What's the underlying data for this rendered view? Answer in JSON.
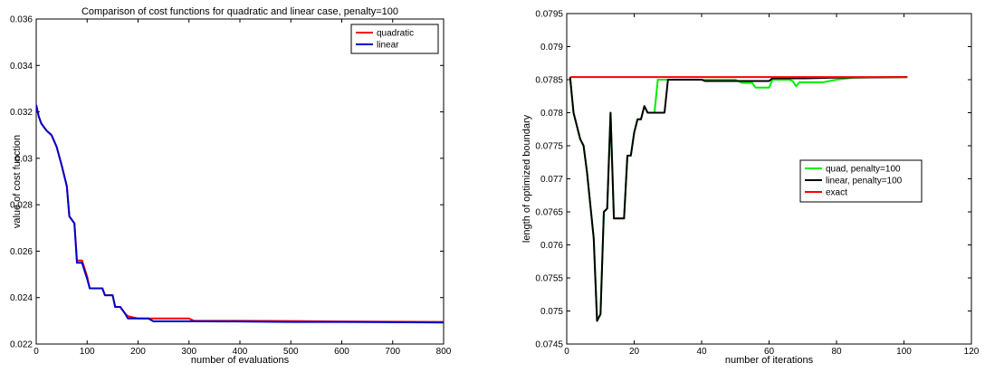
{
  "chart_data": [
    {
      "type": "line",
      "title": "Comparison of cost functions for quadratic and linear case, penalty=100",
      "xlabel": "number of evaluations",
      "ylabel": "value of cost function",
      "xlim": [
        0,
        800
      ],
      "ylim": [
        0.022,
        0.036
      ],
      "xticks": [
        "0",
        "100",
        "200",
        "300",
        "400",
        "500",
        "600",
        "700",
        "800"
      ],
      "yticks": [
        "0.022",
        "0.024",
        "0.026",
        "0.028",
        "0.03",
        "0.032",
        "0.034",
        "0.036"
      ],
      "grid": false,
      "legend": "top-right",
      "series": [
        {
          "name": "quadratic",
          "color": "#ff0000",
          "points": [
            [
              0,
              0.0323
            ],
            [
              5,
              0.0318
            ],
            [
              10,
              0.0315
            ],
            [
              20,
              0.0312
            ],
            [
              30,
              0.031
            ],
            [
              40,
              0.0305
            ],
            [
              50,
              0.0297
            ],
            [
              60,
              0.0288
            ],
            [
              65,
              0.0275
            ],
            [
              75,
              0.0272
            ],
            [
              80,
              0.0256
            ],
            [
              90,
              0.0256
            ],
            [
              100,
              0.0249
            ],
            [
              105,
              0.0244
            ],
            [
              130,
              0.0244
            ],
            [
              135,
              0.0241
            ],
            [
              150,
              0.0241
            ],
            [
              155,
              0.0236
            ],
            [
              165,
              0.0236
            ],
            [
              175,
              0.0233
            ],
            [
              180,
              0.0232
            ],
            [
              200,
              0.0231
            ],
            [
              210,
              0.0231
            ],
            [
              220,
              0.0231
            ],
            [
              300,
              0.0231
            ],
            [
              310,
              0.023
            ],
            [
              400,
              0.023
            ],
            [
              500,
              0.02299
            ],
            [
              600,
              0.02297
            ],
            [
              700,
              0.02296
            ],
            [
              800,
              0.02295
            ]
          ]
        },
        {
          "name": "linear",
          "color": "#0000cc",
          "points": [
            [
              0,
              0.0323
            ],
            [
              5,
              0.0318
            ],
            [
              10,
              0.0315
            ],
            [
              20,
              0.0312
            ],
            [
              30,
              0.031
            ],
            [
              40,
              0.0305
            ],
            [
              50,
              0.0297
            ],
            [
              60,
              0.0288
            ],
            [
              65,
              0.0275
            ],
            [
              75,
              0.0272
            ],
            [
              80,
              0.0255
            ],
            [
              90,
              0.0255
            ],
            [
              100,
              0.0248
            ],
            [
              105,
              0.0244
            ],
            [
              130,
              0.0244
            ],
            [
              135,
              0.0241
            ],
            [
              150,
              0.0241
            ],
            [
              155,
              0.0236
            ],
            [
              165,
              0.0236
            ],
            [
              175,
              0.0233
            ],
            [
              180,
              0.0231
            ],
            [
              200,
              0.0231
            ],
            [
              220,
              0.0231
            ],
            [
              230,
              0.02298
            ],
            [
              300,
              0.02298
            ],
            [
              400,
              0.02297
            ],
            [
              500,
              0.02295
            ],
            [
              600,
              0.02295
            ],
            [
              700,
              0.02294
            ],
            [
              800,
              0.02293
            ]
          ]
        }
      ]
    },
    {
      "type": "line",
      "title": "",
      "xlabel": "number of iterations",
      "ylabel": "length of optimized boundary",
      "xlim": [
        0,
        120
      ],
      "ylim": [
        0.0745,
        0.0795
      ],
      "xticks": [
        "0",
        "20",
        "40",
        "60",
        "80",
        "100",
        "120"
      ],
      "yticks": [
        "0.0745",
        "0.075",
        "0.0755",
        "0.076",
        "0.0765",
        "0.077",
        "0.0775",
        "0.078",
        "0.0785",
        "0.079",
        "0.0795"
      ],
      "grid": false,
      "legend": "center-right",
      "series": [
        {
          "name": "quad, penalty=100",
          "color": "#00ee00",
          "points": [
            [
              1,
              0.07854
            ],
            [
              2,
              0.078
            ],
            [
              3,
              0.0778
            ],
            [
              4,
              0.0776
            ],
            [
              5,
              0.0775
            ],
            [
              6,
              0.0771
            ],
            [
              7,
              0.0766
            ],
            [
              8,
              0.0761
            ],
            [
              9,
              0.07485
            ],
            [
              10,
              0.07495
            ],
            [
              11,
              0.0765
            ],
            [
              12,
              0.07655
            ],
            [
              13,
              0.078
            ],
            [
              14,
              0.0764
            ],
            [
              17,
              0.0764
            ],
            [
              18,
              0.07735
            ],
            [
              19,
              0.07735
            ],
            [
              20,
              0.0777
            ],
            [
              21,
              0.0779
            ],
            [
              22,
              0.0779
            ],
            [
              23,
              0.0781
            ],
            [
              24,
              0.078
            ],
            [
              26,
              0.078
            ],
            [
              27,
              0.0785
            ],
            [
              50,
              0.0785
            ],
            [
              52,
              0.07845
            ],
            [
              55,
              0.07845
            ],
            [
              56,
              0.07838
            ],
            [
              60,
              0.07838
            ],
            [
              61,
              0.0785
            ],
            [
              66,
              0.0785
            ],
            [
              67,
              0.07848
            ],
            [
              68,
              0.0784
            ],
            [
              69,
              0.07846
            ],
            [
              76,
              0.07846
            ],
            [
              80,
              0.0785
            ],
            [
              85,
              0.07853
            ],
            [
              101,
              0.07854
            ]
          ]
        },
        {
          "name": "linear, penalty=100",
          "color": "#000000",
          "points": [
            [
              1,
              0.07854
            ],
            [
              2,
              0.078
            ],
            [
              3,
              0.0778
            ],
            [
              4,
              0.0776
            ],
            [
              5,
              0.0775
            ],
            [
              6,
              0.0771
            ],
            [
              7,
              0.0766
            ],
            [
              8,
              0.0761
            ],
            [
              9,
              0.07485
            ],
            [
              10,
              0.07495
            ],
            [
              11,
              0.0765
            ],
            [
              12,
              0.07655
            ],
            [
              13,
              0.078
            ],
            [
              14,
              0.0764
            ],
            [
              17,
              0.0764
            ],
            [
              18,
              0.07735
            ],
            [
              19,
              0.07735
            ],
            [
              20,
              0.0777
            ],
            [
              21,
              0.0779
            ],
            [
              22,
              0.0779
            ],
            [
              23,
              0.0781
            ],
            [
              24,
              0.078
            ],
            [
              29,
              0.078
            ],
            [
              30,
              0.0785
            ],
            [
              40,
              0.0785
            ],
            [
              41,
              0.07848
            ],
            [
              60,
              0.07848
            ],
            [
              61,
              0.07852
            ],
            [
              70,
              0.07852
            ],
            [
              80,
              0.07853
            ],
            [
              101,
              0.07854
            ]
          ]
        },
        {
          "name": "exact",
          "color": "#ff0000",
          "points": [
            [
              1,
              0.07854
            ],
            [
              101,
              0.07854
            ]
          ]
        }
      ]
    }
  ]
}
